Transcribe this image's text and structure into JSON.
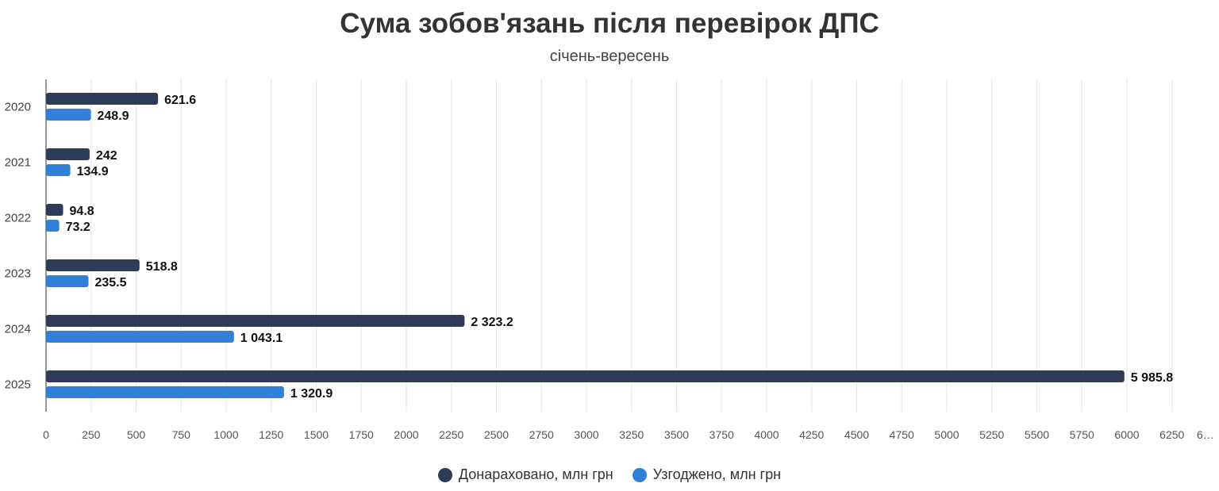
{
  "chart_data": {
    "type": "bar",
    "orientation": "horizontal",
    "title": "Сума зобов'язань після перевірок ДПС",
    "subtitle": "січень-вересень",
    "categories": [
      "2020",
      "2021",
      "2022",
      "2023",
      "2024",
      "2025"
    ],
    "series": [
      {
        "name": "Донараховано, млн грн",
        "color": "#2e3c5a",
        "values": [
          621.6,
          242,
          94.8,
          518.8,
          2323.2,
          5985.8
        ],
        "labels": [
          "621.6",
          "242",
          "94.8",
          "518.8",
          "2 323.2",
          "5 985.8"
        ]
      },
      {
        "name": "Узгоджено, млн грн",
        "color": "#2f80d6",
        "values": [
          248.9,
          134.9,
          73.2,
          235.5,
          1043.1,
          1320.9
        ],
        "labels": [
          "248.9",
          "134.9",
          "73.2",
          "235.5",
          "1 043.1",
          "1 320.9"
        ]
      }
    ],
    "xlim": [
      0,
      6500
    ],
    "xticks": [
      0,
      250,
      500,
      750,
      1000,
      1250,
      1500,
      1750,
      2000,
      2250,
      2500,
      2750,
      3000,
      3250,
      3500,
      3750,
      4000,
      4250,
      4500,
      4750,
      5000,
      5250,
      5500,
      5750,
      6000,
      6250
    ],
    "xtick_truncated_label": "6…",
    "grid": true,
    "legend_position": "bottom"
  }
}
